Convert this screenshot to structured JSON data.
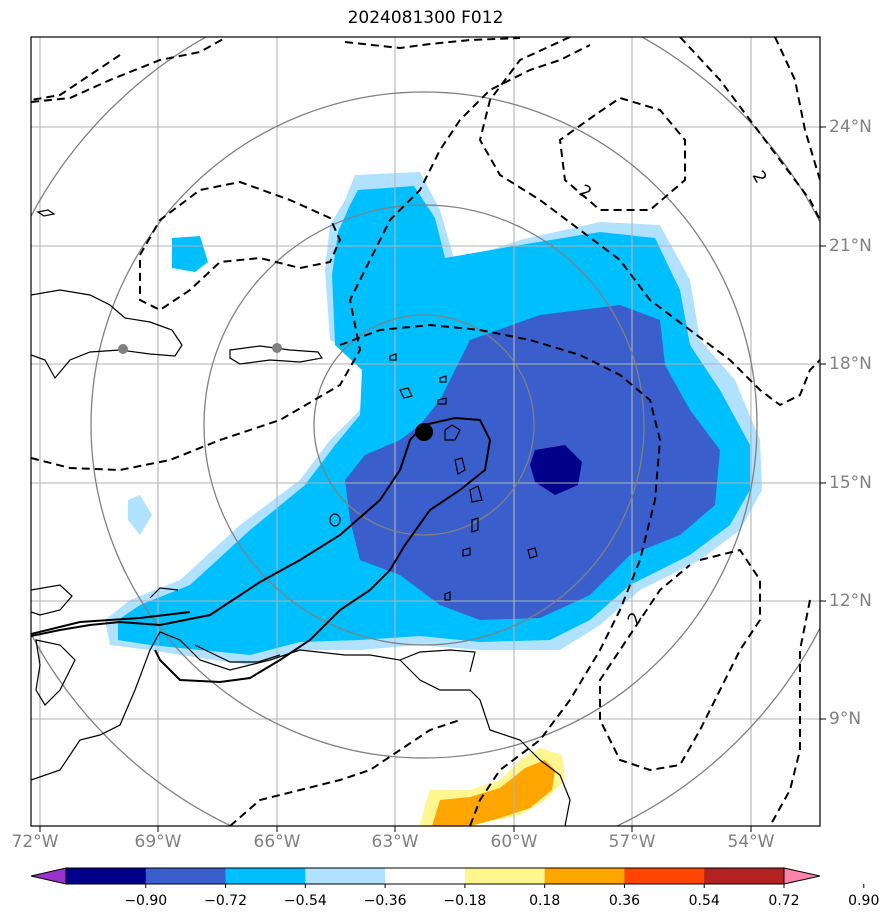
{
  "title": "2024081300 F012",
  "lon_labels": [
    "72°W",
    "69°W",
    "66°W",
    "63°W",
    "60°W",
    "57°W",
    "54°W"
  ],
  "lat_labels": [
    "24°N",
    "21°N",
    "18°N",
    "15°N",
    "12°N",
    "9°N"
  ],
  "contour_labels": [
    "2",
    "2",
    "2"
  ],
  "colorbar": {
    "colors": [
      "#9932cc",
      "#00008b",
      "#3a5fcd",
      "#00bfff",
      "#b0e2ff",
      "#ffffff",
      "#fff68f",
      "#ffa500",
      "#ff4500",
      "#b22222",
      "#ff82ab"
    ],
    "ticks": [
      "−0.90",
      "−0.72",
      "−0.54",
      "−0.36",
      "−0.18",
      "0.18",
      "0.36",
      "0.54",
      "0.72",
      "0.90"
    ]
  },
  "storm_center": {
    "lon": -62.3,
    "lat": 16.3
  }
}
